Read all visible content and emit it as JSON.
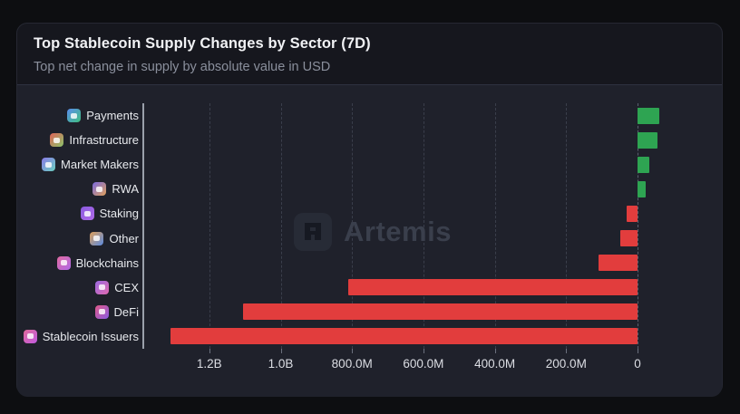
{
  "header": {
    "title": "Top Stablecoin Supply Changes by Sector (7D)",
    "subtitle": "Top net change in supply by absolute value in USD"
  },
  "watermark": {
    "text": "Artemis",
    "logo_icon": "artemis-logo-icon"
  },
  "colors": {
    "page_bg": "#0d0e11",
    "card_bg": "#16171e",
    "panel_bg": "#1f212b",
    "positive_bar": "#2ea452",
    "negative_bar": "#e23d3d",
    "gridline": "#3a3e4b",
    "zero_line": "#5a5f6e",
    "axis_line": "#9aa0ab",
    "tick_text": "#dcdee4",
    "label_text": "#e7e9ed",
    "watermark_text": "#3a3f4c"
  },
  "chart_data": {
    "type": "bar",
    "orientation": "horizontal",
    "title": "Top Stablecoin Supply Changes by Sector (7D)",
    "subtitle": "Top net change in supply by absolute value in USD",
    "value_unit": "USD net supply change, 7 days",
    "legend": "none",
    "grid": "dashed-vertical",
    "x_axis": {
      "reversed": true,
      "tick_values_millions": [
        1200,
        1000,
        800,
        600,
        400,
        200,
        0
      ],
      "tick_labels": [
        "1.2B",
        "1.0B",
        "800.0M",
        "600.0M",
        "400.0M",
        "200.0M",
        "0"
      ],
      "approx_range_millions": [
        1380,
        -150
      ]
    },
    "categories": [
      {
        "label": "Payments",
        "icon": "payments-icon",
        "value_millions": 61,
        "icon_colors": [
          "#5b8def",
          "#3fbf7f"
        ]
      },
      {
        "label": "Infrastructure",
        "icon": "infrastructure-icon",
        "value_millions": 56,
        "icon_colors": [
          "#e0645a",
          "#8bc46a"
        ]
      },
      {
        "label": "Market Makers",
        "icon": "market-makers-icon",
        "value_millions": 32,
        "icon_colors": [
          "#8b7ae8",
          "#6ad0c0"
        ]
      },
      {
        "label": "RWA",
        "icon": "rwa-icon",
        "value_millions": 22,
        "icon_colors": [
          "#7a6ae0",
          "#e0a05a"
        ]
      },
      {
        "label": "Staking",
        "icon": "staking-icon",
        "value_millions": -30,
        "icon_colors": [
          "#8a5ae0",
          "#b06ae8"
        ]
      },
      {
        "label": "Other",
        "icon": "other-icon",
        "value_millions": -48,
        "icon_colors": [
          "#e0a05a",
          "#5a8ae0"
        ]
      },
      {
        "label": "Blockchains",
        "icon": "blockchains-icon",
        "value_millions": -109,
        "icon_colors": [
          "#e06aa0",
          "#b06ae8"
        ]
      },
      {
        "label": "CEX",
        "icon": "cex-icon",
        "value_millions": -811,
        "icon_colors": [
          "#9a6ae0",
          "#e06ab0"
        ]
      },
      {
        "label": "DeFi",
        "icon": "defi-icon",
        "value_millions": -1106,
        "icon_colors": [
          "#e05a8a",
          "#8a5ae0"
        ]
      },
      {
        "label": "Stablecoin Issuers",
        "icon": "stablecoin-issuers-icon",
        "value_millions": -1309,
        "icon_colors": [
          "#e06a9a",
          "#c05ae0"
        ]
      }
    ]
  }
}
